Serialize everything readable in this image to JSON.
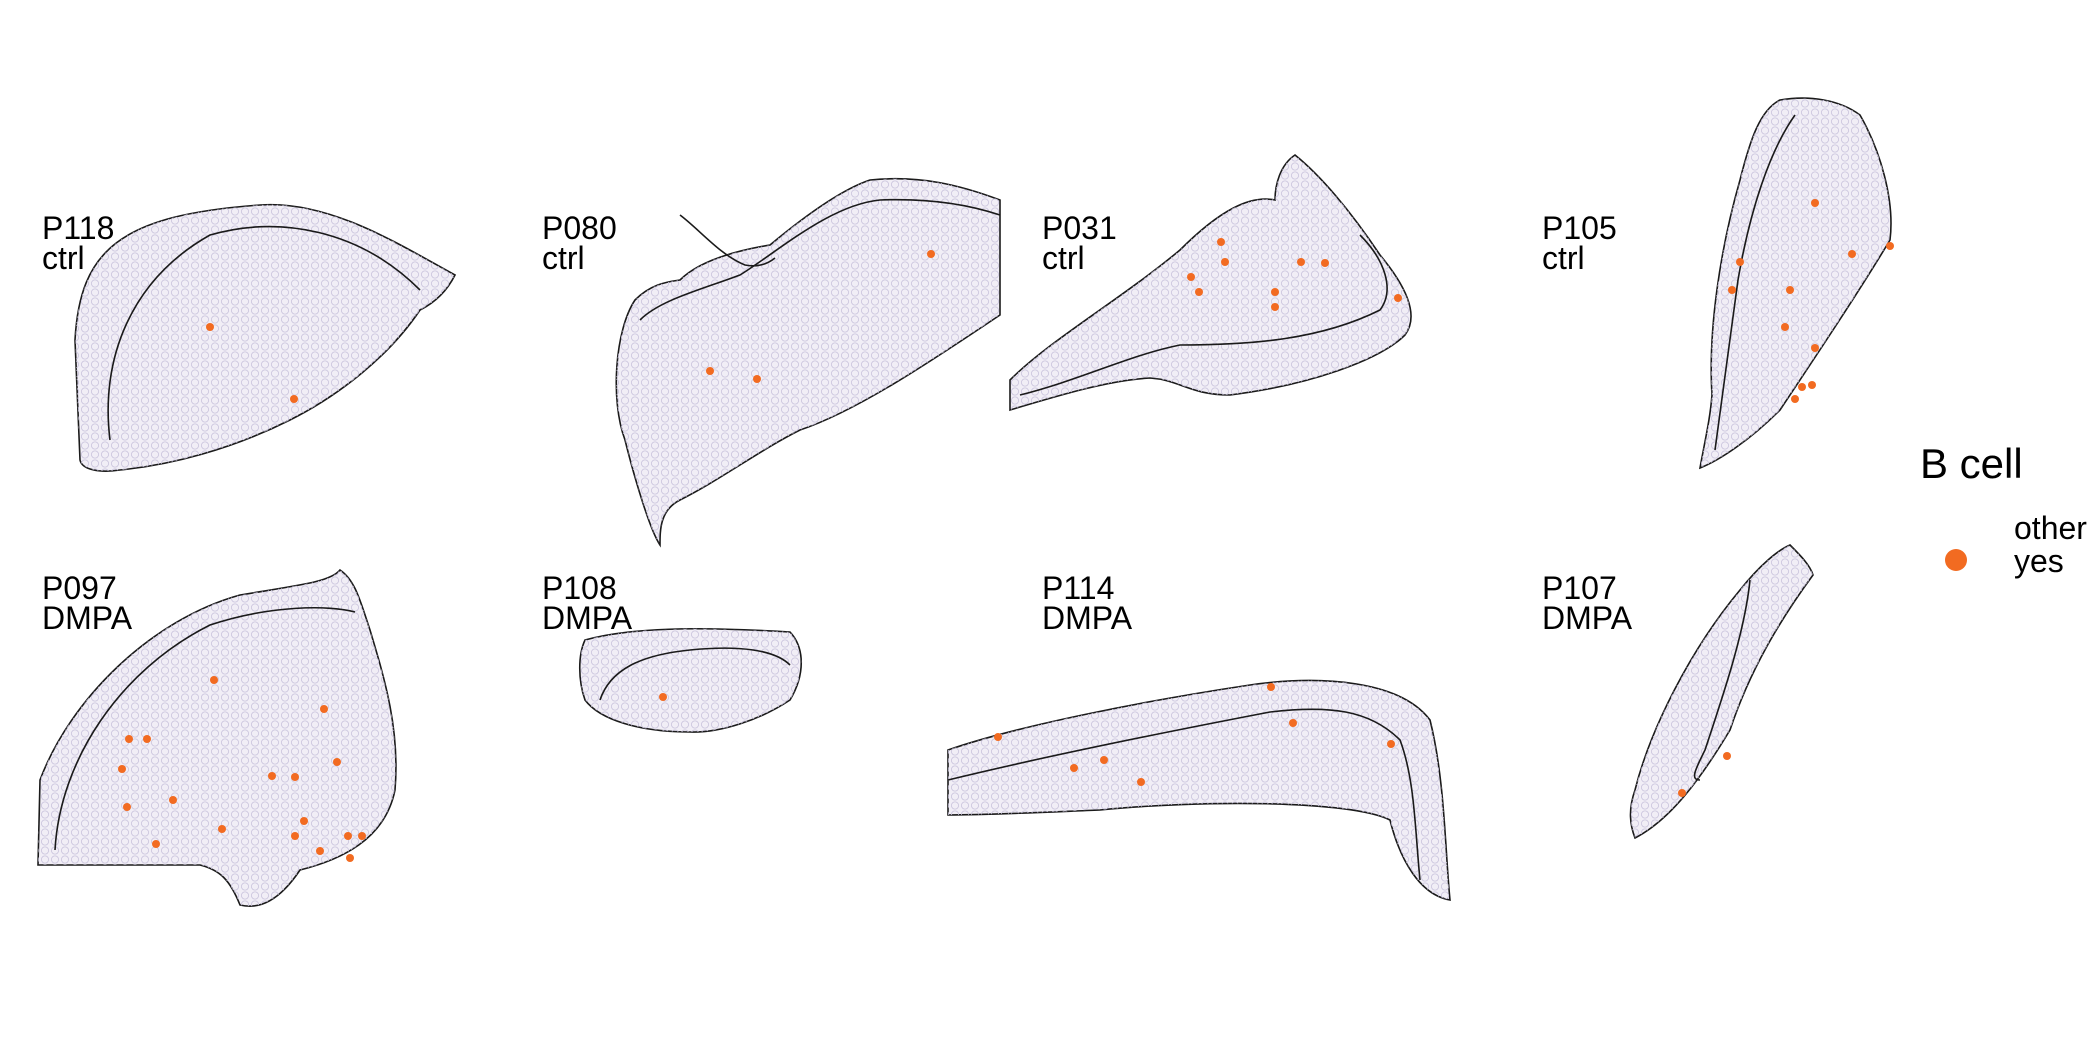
{
  "figure": {
    "panels": [
      {
        "id": "P118",
        "group": "ctrl"
      },
      {
        "id": "P080",
        "group": "ctrl"
      },
      {
        "id": "P031",
        "group": "ctrl"
      },
      {
        "id": "P105",
        "group": "ctrl"
      },
      {
        "id": "P097",
        "group": "DMPA"
      },
      {
        "id": "P108",
        "group": "DMPA"
      },
      {
        "id": "P114",
        "group": "DMPA"
      },
      {
        "id": "P107",
        "group": "DMPA"
      }
    ],
    "legend": {
      "title": "B cell",
      "items": [
        {
          "label": "other",
          "color": ""
        },
        {
          "label": "yes",
          "color": "#f26b21"
        }
      ]
    },
    "colors": {
      "yes": "#f26b21",
      "tissue_fill": "#f1eef6",
      "spot_grid": "#c9c3dc",
      "outline": "#1a1a1a"
    }
  }
}
